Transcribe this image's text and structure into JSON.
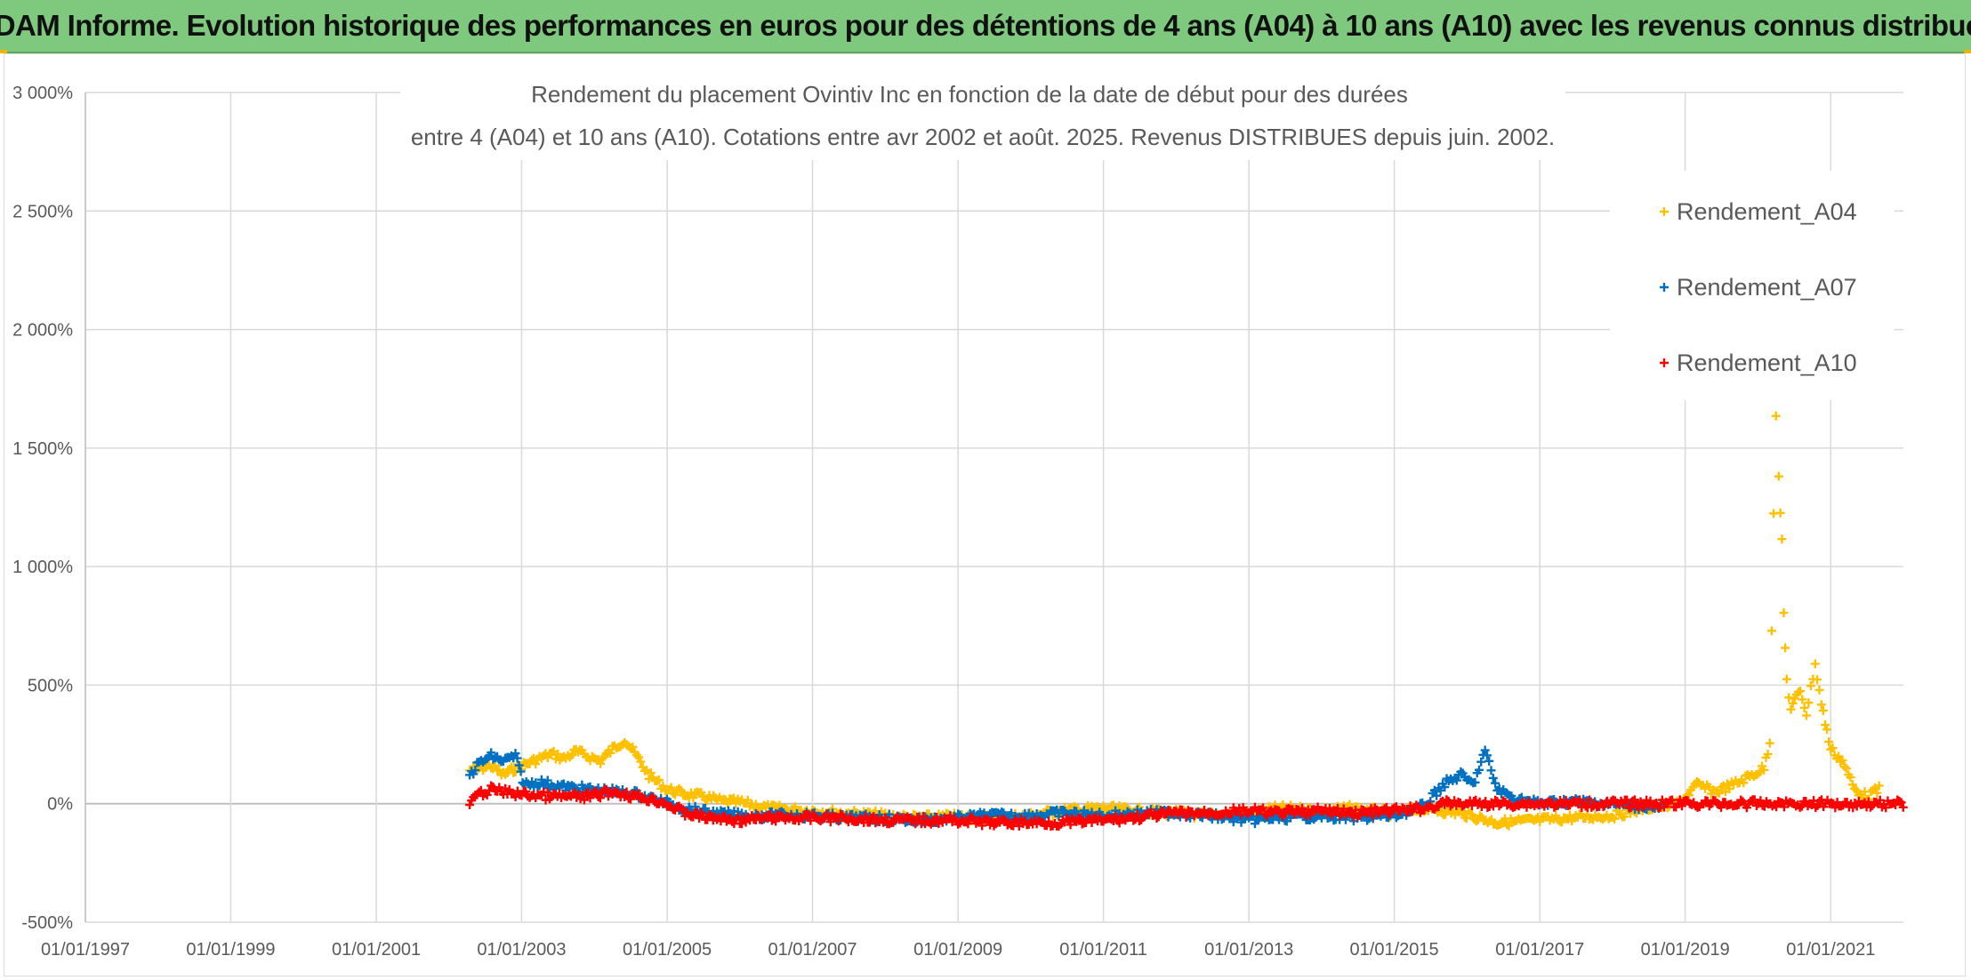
{
  "header": {
    "title": "ADAM Informe. Evolution historique des performances en euros pour des détentions de 4 ans (A04) à 10 ans (A10) avec les revenus connus distribués"
  },
  "colors": {
    "header_bg": "#7fc97f",
    "A04": "#ffc000",
    "A07": "#0070c0",
    "A10": "#ff0000",
    "grid": "#d9d9d9",
    "text": "#595959"
  },
  "chart_data": {
    "type": "scatter",
    "title_lines": [
      "Rendement du placement Ovintiv Inc en fonction de la date de début pour des durées",
      "entre 4 (A04) et 10 ans (A10). Cotations entre avr 2002 et août. 2025. Revenus DISTRIBUES depuis juin. 2002."
    ],
    "marker": "plus",
    "xlabel": "",
    "ylabel": "",
    "xlim": [
      "1997-01-01",
      "2022-01-01"
    ],
    "ylim": [
      -500,
      3000
    ],
    "x_tick_labels": [
      "01/01/1997",
      "01/01/1999",
      "01/01/2001",
      "01/01/2003",
      "01/01/2005",
      "01/01/2007",
      "01/01/2009",
      "01/01/2011",
      "01/01/2013",
      "01/01/2015",
      "01/01/2017",
      "01/01/2019",
      "01/01/2021"
    ],
    "y_ticks": [
      -500,
      0,
      500,
      1000,
      1500,
      2000,
      2500,
      3000
    ],
    "y_tick_labels": [
      "-500%",
      "0%",
      "500%",
      "1 000%",
      "1 500%",
      "2 000%",
      "2 500%",
      "3 000%"
    ],
    "grid": true,
    "legend_position": "top-right",
    "series": [
      {
        "name": "Rendement_A04",
        "color": "#ffc000",
        "points": [
          [
            "2002-04-15",
            140
          ],
          [
            "2002-06-01",
            150
          ],
          [
            "2002-08-01",
            160
          ],
          [
            "2002-10-01",
            120
          ],
          [
            "2002-12-01",
            150
          ],
          [
            "2003-02-01",
            170
          ],
          [
            "2003-04-01",
            190
          ],
          [
            "2003-06-01",
            210
          ],
          [
            "2003-08-01",
            190
          ],
          [
            "2003-10-01",
            220
          ],
          [
            "2003-12-01",
            200
          ],
          [
            "2004-02-01",
            180
          ],
          [
            "2004-04-01",
            230
          ],
          [
            "2004-06-01",
            270
          ],
          [
            "2004-08-01",
            200
          ],
          [
            "2004-10-01",
            120
          ],
          [
            "2005-01-01",
            60
          ],
          [
            "2005-04-01",
            40
          ],
          [
            "2005-07-01",
            30
          ],
          [
            "2005-10-01",
            10
          ],
          [
            "2006-01-01",
            5
          ],
          [
            "2006-06-01",
            -20
          ],
          [
            "2007-01-01",
            -30
          ],
          [
            "2007-06-01",
            -40
          ],
          [
            "2008-01-01",
            -50
          ],
          [
            "2008-06-01",
            -60
          ],
          [
            "2009-01-01",
            -55
          ],
          [
            "2009-06-01",
            -60
          ],
          [
            "2010-01-01",
            -50
          ],
          [
            "2010-06-01",
            -30
          ],
          [
            "2011-01-01",
            -20
          ],
          [
            "2011-06-01",
            -30
          ],
          [
            "2012-01-01",
            -40
          ],
          [
            "2012-06-01",
            -50
          ],
          [
            "2013-01-01",
            -40
          ],
          [
            "2013-06-01",
            -20
          ],
          [
            "2014-01-01",
            -30
          ],
          [
            "2014-06-01",
            -20
          ],
          [
            "2015-01-01",
            -40
          ],
          [
            "2015-06-01",
            -20
          ],
          [
            "2015-12-01",
            -40
          ],
          [
            "2016-06-01",
            -80
          ],
          [
            "2017-01-01",
            -70
          ],
          [
            "2017-06-01",
            -60
          ],
          [
            "2018-01-01",
            -50
          ],
          [
            "2018-06-01",
            -20
          ],
          [
            "2018-12-01",
            0
          ],
          [
            "2019-03-01",
            80
          ],
          [
            "2019-06-01",
            50
          ],
          [
            "2019-09-01",
            80
          ],
          [
            "2019-12-01",
            120
          ],
          [
            "2020-02-01",
            150
          ],
          [
            "2020-03-01",
            260
          ],
          [
            "2020-03-20",
            1230
          ],
          [
            "2020-04-01",
            1650
          ],
          [
            "2020-04-15",
            1370
          ],
          [
            "2020-05-01",
            1100
          ],
          [
            "2020-05-10",
            800
          ],
          [
            "2020-05-25",
            520
          ],
          [
            "2020-06-15",
            400
          ],
          [
            "2020-08-01",
            480
          ],
          [
            "2020-09-01",
            380
          ],
          [
            "2020-10-15",
            590
          ],
          [
            "2020-11-15",
            420
          ],
          [
            "2021-01-01",
            230
          ],
          [
            "2021-03-01",
            180
          ],
          [
            "2021-05-01",
            60
          ],
          [
            "2021-07-01",
            30
          ],
          [
            "2021-09-01",
            60
          ]
        ]
      },
      {
        "name": "Rendement_A07",
        "color": "#0070c0",
        "points": [
          [
            "2002-04-15",
            120
          ],
          [
            "2002-06-01",
            170
          ],
          [
            "2002-08-01",
            200
          ],
          [
            "2002-10-01",
            180
          ],
          [
            "2002-12-01",
            200
          ],
          [
            "2003-01-15",
            80
          ],
          [
            "2003-04-01",
            90
          ],
          [
            "2003-08-01",
            70
          ],
          [
            "2003-12-01",
            60
          ],
          [
            "2004-04-01",
            50
          ],
          [
            "2004-08-01",
            40
          ],
          [
            "2004-12-01",
            10
          ],
          [
            "2005-04-01",
            -20
          ],
          [
            "2005-08-01",
            -40
          ],
          [
            "2006-01-01",
            -50
          ],
          [
            "2006-06-01",
            -50
          ],
          [
            "2007-01-01",
            -50
          ],
          [
            "2007-06-01",
            -60
          ],
          [
            "2008-01-01",
            -60
          ],
          [
            "2008-06-01",
            -70
          ],
          [
            "2009-01-01",
            -60
          ],
          [
            "2009-06-01",
            -50
          ],
          [
            "2010-01-01",
            -50
          ],
          [
            "2010-06-01",
            -40
          ],
          [
            "2011-01-01",
            -50
          ],
          [
            "2011-06-01",
            -40
          ],
          [
            "2012-01-01",
            -40
          ],
          [
            "2012-06-01",
            -50
          ],
          [
            "2013-01-01",
            -70
          ],
          [
            "2013-06-01",
            -60
          ],
          [
            "2014-01-01",
            -50
          ],
          [
            "2014-06-01",
            -60
          ],
          [
            "2015-01-01",
            -50
          ],
          [
            "2015-06-01",
            -10
          ],
          [
            "2015-09-01",
            80
          ],
          [
            "2015-12-01",
            120
          ],
          [
            "2016-02-01",
            80
          ],
          [
            "2016-04-01",
            220
          ],
          [
            "2016-06-01",
            60
          ],
          [
            "2016-09-01",
            20
          ],
          [
            "2017-01-01",
            0
          ],
          [
            "2017-06-01",
            10
          ],
          [
            "2017-12-01",
            0
          ],
          [
            "2018-06-01",
            -10
          ],
          [
            "2018-09-01",
            -20
          ]
        ]
      },
      {
        "name": "Rendement_A10",
        "color": "#ff0000",
        "points": [
          [
            "2002-04-15",
            0
          ],
          [
            "2002-06-01",
            40
          ],
          [
            "2002-08-01",
            60
          ],
          [
            "2002-10-01",
            50
          ],
          [
            "2003-01-01",
            40
          ],
          [
            "2003-06-01",
            30
          ],
          [
            "2003-12-01",
            30
          ],
          [
            "2004-04-01",
            50
          ],
          [
            "2004-08-01",
            30
          ],
          [
            "2004-12-01",
            10
          ],
          [
            "2005-04-01",
            -40
          ],
          [
            "2005-08-01",
            -60
          ],
          [
            "2006-01-01",
            -70
          ],
          [
            "2006-06-01",
            -60
          ],
          [
            "2007-01-01",
            -60
          ],
          [
            "2007-06-01",
            -60
          ],
          [
            "2008-01-01",
            -70
          ],
          [
            "2008-06-01",
            -70
          ],
          [
            "2009-01-01",
            -70
          ],
          [
            "2009-06-01",
            -80
          ],
          [
            "2010-01-01",
            -80
          ],
          [
            "2010-06-01",
            -80
          ],
          [
            "2011-01-01",
            -70
          ],
          [
            "2011-06-01",
            -60
          ],
          [
            "2012-01-01",
            -40
          ],
          [
            "2012-06-01",
            -40
          ],
          [
            "2013-01-01",
            -30
          ],
          [
            "2013-06-01",
            -40
          ],
          [
            "2014-01-01",
            -30
          ],
          [
            "2014-06-01",
            -40
          ],
          [
            "2015-01-01",
            -30
          ],
          [
            "2015-06-01",
            -20
          ],
          [
            "2015-09-01",
            0
          ],
          [
            "2016-06-01",
            0
          ],
          [
            "2017-06-01",
            0
          ],
          [
            "2018-06-01",
            0
          ],
          [
            "2019-06-01",
            0
          ],
          [
            "2020-06-01",
            0
          ],
          [
            "2021-06-01",
            0
          ],
          [
            "2021-12-31",
            0
          ]
        ]
      }
    ]
  }
}
